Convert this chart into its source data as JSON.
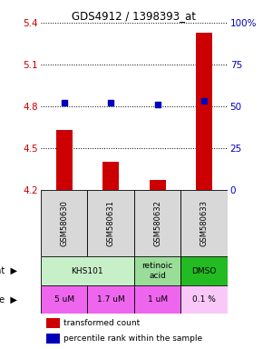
{
  "title": "GDS4912 / 1398393_at",
  "samples": [
    "GSM580630",
    "GSM580631",
    "GSM580632",
    "GSM580633"
  ],
  "bar_values": [
    4.63,
    4.4,
    4.27,
    5.33
  ],
  "percentile_values": [
    52,
    52,
    51,
    53
  ],
  "ylim_left": [
    4.2,
    5.4
  ],
  "ylim_right": [
    0,
    100
  ],
  "yticks_left": [
    4.2,
    4.5,
    4.8,
    5.1,
    5.4
  ],
  "yticks_right": [
    0,
    25,
    50,
    75,
    100
  ],
  "ytick_labels_right": [
    "0",
    "25",
    "50",
    "75",
    "100%"
  ],
  "bar_color": "#cc0000",
  "dot_color": "#0000bb",
  "agent_groups": [
    {
      "cols": [
        0,
        1
      ],
      "label": "KHS101",
      "color": "#c8f0c8"
    },
    {
      "cols": [
        2
      ],
      "label": "retinoic\nacid",
      "color": "#99dd99"
    },
    {
      "cols": [
        3
      ],
      "label": "DMSO",
      "color": "#22bb22"
    }
  ],
  "dose_labels": [
    "5 uM",
    "1.7 uM",
    "1 uM",
    "0.1 %"
  ],
  "dose_colors": [
    "#ee66ee",
    "#ee66ee",
    "#ee66ee",
    "#f9c8f9"
  ],
  "sample_bg": "#d8d8d8",
  "legend_bar_color": "#cc0000",
  "legend_dot_color": "#0000bb"
}
